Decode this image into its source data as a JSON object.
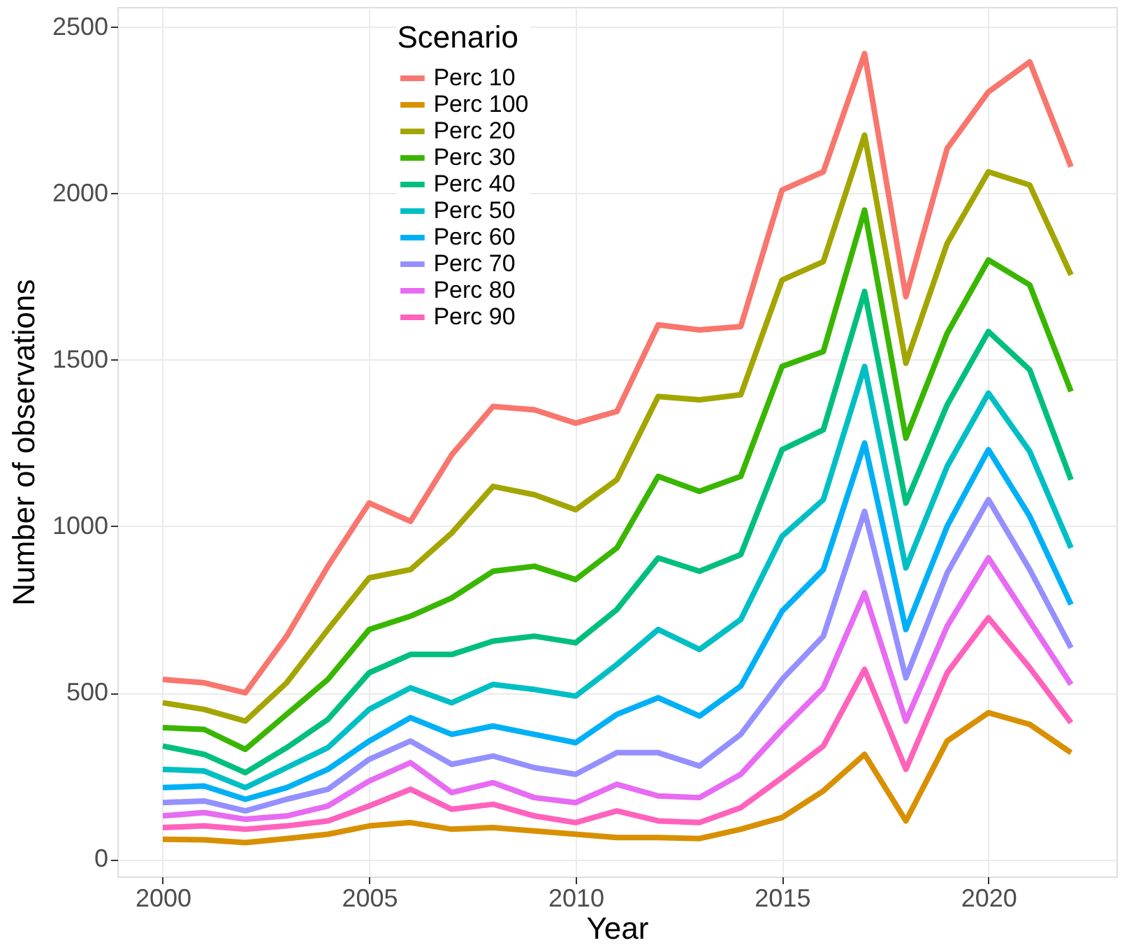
{
  "chart_data": {
    "type": "line",
    "xlabel": "Year",
    "ylabel": "Number of observations",
    "legend_title": "Scenario",
    "x": [
      2000,
      2001,
      2002,
      2003,
      2004,
      2005,
      2006,
      2007,
      2008,
      2009,
      2010,
      2011,
      2012,
      2013,
      2014,
      2015,
      2016,
      2017,
      2018,
      2019,
      2020,
      2021,
      2022
    ],
    "series": [
      {
        "name": "Perc 10",
        "color": "#f8766d",
        "values": [
          540,
          530,
          500,
          670,
          880,
          1070,
          1015,
          1215,
          1360,
          1350,
          1310,
          1345,
          1605,
          1590,
          1600,
          2010,
          2065,
          2420,
          1690,
          2135,
          2305,
          2395,
          2080
        ]
      },
      {
        "name": "Perc 100",
        "color": "#d89000",
        "values": [
          60,
          58,
          50,
          62,
          75,
          100,
          110,
          90,
          95,
          85,
          75,
          65,
          65,
          62,
          90,
          125,
          205,
          315,
          115,
          355,
          440,
          405,
          320
        ]
      },
      {
        "name": "Perc 20",
        "color": "#a3a500",
        "values": [
          470,
          450,
          415,
          530,
          690,
          845,
          870,
          980,
          1120,
          1095,
          1050,
          1140,
          1390,
          1380,
          1395,
          1740,
          1795,
          2175,
          1490,
          1850,
          2065,
          2025,
          1755
        ]
      },
      {
        "name": "Perc 30",
        "color": "#39b600",
        "values": [
          395,
          390,
          330,
          435,
          540,
          690,
          730,
          785,
          865,
          880,
          840,
          935,
          1150,
          1105,
          1150,
          1480,
          1525,
          1950,
          1265,
          1580,
          1800,
          1725,
          1405
        ]
      },
      {
        "name": "Perc 40",
        "color": "#00bf7d",
        "values": [
          340,
          315,
          260,
          335,
          420,
          560,
          615,
          615,
          655,
          670,
          650,
          750,
          905,
          865,
          915,
          1230,
          1290,
          1705,
          1070,
          1365,
          1585,
          1470,
          1140
        ]
      },
      {
        "name": "Perc 50",
        "color": "#00bfc4",
        "values": [
          270,
          265,
          215,
          275,
          335,
          450,
          515,
          470,
          525,
          510,
          490,
          585,
          690,
          630,
          720,
          970,
          1080,
          1480,
          875,
          1180,
          1400,
          1225,
          935
        ]
      },
      {
        "name": "Perc 60",
        "color": "#00b0f6",
        "values": [
          215,
          220,
          180,
          215,
          270,
          355,
          425,
          375,
          400,
          375,
          350,
          435,
          485,
          430,
          520,
          745,
          870,
          1250,
          690,
          1000,
          1230,
          1030,
          765
        ]
      },
      {
        "name": "Perc 70",
        "color": "#9590ff",
        "values": [
          170,
          175,
          145,
          180,
          210,
          300,
          355,
          285,
          310,
          275,
          255,
          320,
          320,
          280,
          375,
          540,
          670,
          1045,
          545,
          860,
          1080,
          870,
          635
        ]
      },
      {
        "name": "Perc 80",
        "color": "#e76bf3",
        "values": [
          130,
          140,
          120,
          130,
          160,
          235,
          290,
          200,
          230,
          185,
          170,
          225,
          190,
          185,
          255,
          390,
          515,
          800,
          415,
          700,
          905,
          715,
          525
        ]
      },
      {
        "name": "Perc 90",
        "color": "#ff62bc",
        "values": [
          95,
          100,
          90,
          100,
          115,
          160,
          210,
          150,
          165,
          130,
          110,
          145,
          115,
          110,
          155,
          245,
          340,
          570,
          270,
          560,
          725,
          575,
          410
        ]
      }
    ],
    "xlim": [
      1998.9,
      2023.1
    ],
    "ylim": [
      -52,
      2560
    ],
    "xticks": [
      2000,
      2005,
      2010,
      2015,
      2020
    ],
    "yticks": [
      0,
      500,
      1000,
      1500,
      2000,
      2500
    ],
    "grid": true,
    "legend": "top",
    "marker": "none",
    "line_style": "solid"
  }
}
